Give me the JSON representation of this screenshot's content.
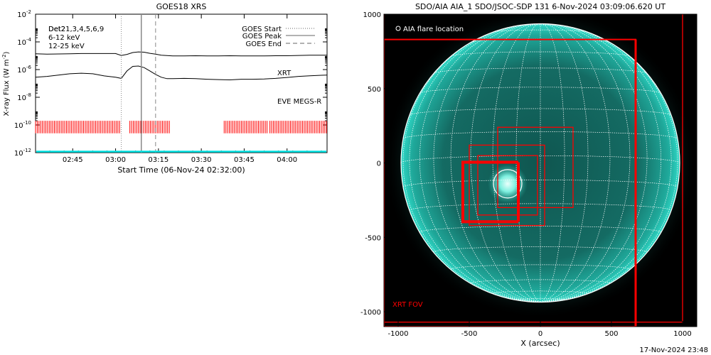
{
  "goes_panel": {
    "title": "GOES18 XRS",
    "y_axis_label": "X-ray Flux (W m",
    "y_axis_label_sup": "-2",
    "y_axis_label_end": ")",
    "x_axis_label": "Start Time (06-Nov-24 02:32:00)",
    "x_ticks": [
      "02:45",
      "03:00",
      "03:15",
      "03:30",
      "03:45",
      "04:00"
    ],
    "y_ticks": [
      {
        "base": "10",
        "exp": "-2"
      },
      {
        "base": "10",
        "exp": "-4"
      },
      {
        "base": "10",
        "exp": "-6"
      },
      {
        "base": "10",
        "exp": "-8"
      },
      {
        "base": "10",
        "exp": "-10"
      },
      {
        "base": "10",
        "exp": "-12"
      }
    ],
    "overlap_label_a": "Det21,3,4,5,6,9",
    "overlap_label_b": "Det2",
    "energy_label_1": "6-12 keV",
    "energy_label_1_color": "#e020e0",
    "energy_label_2": "12-25 keV",
    "energy_label_2_color": "#20e020",
    "legend": [
      {
        "label": "GOES Start",
        "style": "dotted"
      },
      {
        "label": "GOES Peak",
        "style": "solid"
      },
      {
        "label": "GOES End",
        "style": "dashed"
      }
    ],
    "xrt_label": "XRT",
    "xrt_color": "#ff0000",
    "eve_label": "EVE MEGS-R",
    "eve_color": "#00e0e0"
  },
  "aia_panel": {
    "title": "SDO/AIA AIA_1 SDO/JSOC-SDP 131  6-Nov-2024 03:09:06.620 UT",
    "legend_label": "AIA flare location",
    "x_axis_label": "X (arcsec)",
    "x_ticks": [
      "-1000",
      "-500",
      "0",
      "500",
      "1000"
    ],
    "y_ticks": [
      "1000",
      "500",
      "0",
      "-500",
      "-1000"
    ],
    "fov_label": "XRT FOV",
    "fov_color": "#ff0000",
    "disk_color": "#1fa89a"
  },
  "footer": {
    "timestamp": "17-Nov-2024 23:48"
  },
  "chart_data": [
    {
      "type": "line",
      "title": "GOES18 XRS",
      "xlabel": "Start Time (06-Nov-24 02:32:00)",
      "ylabel": "X-ray Flux (W m^-2)",
      "y_scale": "log",
      "ylim": [
        1e-12,
        0.01
      ],
      "x_unit": "minutes after 02:32:00",
      "xlim": [
        0,
        102
      ],
      "grid": false,
      "legend_position": "top-right",
      "series": [
        {
          "x": [
            0,
            4,
            8,
            12,
            16,
            20,
            24,
            28,
            30,
            32,
            34,
            36,
            38,
            40,
            42,
            44,
            48,
            52,
            56,
            60,
            64,
            68,
            72,
            76,
            80,
            84,
            88,
            92,
            96,
            100,
            102
          ],
          "y": [
            1.4e-05,
            1.3e-05,
            1.35e-05,
            1.4e-05,
            1.45e-05,
            1.45e-05,
            1.45e-05,
            1.45e-05,
            1.05e-05,
            1.25e-05,
            1.7e-05,
            1.9e-05,
            1.8e-05,
            1.5e-05,
            1.3e-05,
            1.1e-05,
            9.8e-06,
            9.8e-06,
            1e-05,
            9.8e-06,
            9.8e-06,
            1e-05,
            9.8e-06,
            9.8e-06,
            9.8e-06,
            1e-05,
            1e-05,
            1.05e-05,
            1.1e-05,
            1.1e-05,
            1.1e-05
          ]
        },
        {
          "x": [
            0,
            4,
            8,
            12,
            16,
            20,
            24,
            28,
            30,
            32,
            34,
            36,
            38,
            40,
            42,
            44,
            46,
            48,
            52,
            56,
            60,
            64,
            68,
            72,
            76,
            80,
            84,
            88,
            92,
            96,
            100,
            102
          ],
          "y": [
            2.8e-07,
            3.2e-07,
            4e-07,
            5e-07,
            5.5e-07,
            5e-07,
            3.5e-07,
            2.8e-07,
            2.3e-07,
            8e-07,
            1.7e-06,
            1.8e-06,
            1.4e-06,
            8e-07,
            4.5e-07,
            2.8e-07,
            2.2e-07,
            2.2e-07,
            2.3e-07,
            2.2e-07,
            2e-07,
            1.9e-07,
            1.8e-07,
            2e-07,
            2e-07,
            2.1e-07,
            2.3e-07,
            2.7e-07,
            3.2e-07,
            3.6e-07,
            3.9e-07,
            4e-07
          ]
        }
      ],
      "markers": {
        "goes_start": 30,
        "goes_peak": 37,
        "goes_end": 42
      },
      "xrt_coverage": [
        [
          0,
          30
        ],
        [
          33,
          47
        ],
        [
          66,
          81
        ],
        [
          82,
          102
        ]
      ],
      "eve_level": 1e-12
    },
    {
      "type": "scatter",
      "title": "SDO/AIA AIA_1 SDO/JSOC-SDP 131  6-Nov-2024 03:09:06.620 UT",
      "xlabel": "X (arcsec)",
      "ylabel": "",
      "xlim": [
        -1100,
        1100
      ],
      "ylim": [
        -1100,
        1000
      ],
      "disk_radius_arcsec": 980,
      "flare_location": [
        -230,
        -140
      ],
      "xrt_fov_boxes": [
        {
          "x0": -1100,
          "x1": 670,
          "y0": -1100,
          "y1": 830
        },
        {
          "x0": -1100,
          "x1": 1000,
          "y0": -1070,
          "y1": 1030
        },
        {
          "x0": -300,
          "x1": 230,
          "y0": -300,
          "y1": 240
        },
        {
          "x0": -500,
          "x1": 30,
          "y0": -420,
          "y1": 120
        },
        {
          "x0": -440,
          "x1": -20,
          "y0": -350,
          "y1": 50
        },
        {
          "x0": -550,
          "x1": -160,
          "y0": -400,
          "y1": 10
        },
        {
          "x0": -540,
          "x1": -150,
          "y0": -390,
          "y1": 0
        }
      ]
    }
  ]
}
